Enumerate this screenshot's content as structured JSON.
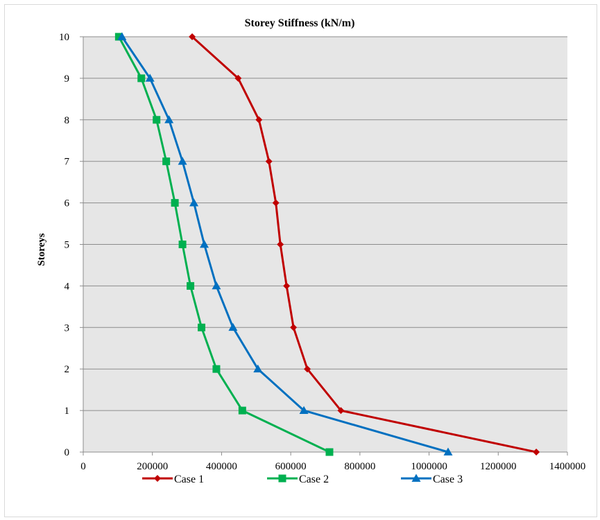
{
  "chart_data": {
    "type": "line",
    "title": "Storey Stiffness (kN/m)",
    "xlabel": "",
    "ylabel": "Storeys",
    "xlim": [
      0,
      1400000
    ],
    "ylim": [
      0,
      10
    ],
    "x_ticks": [
      "0",
      "200000",
      "400000",
      "600000",
      "800000",
      "1000000",
      "1200000",
      "1400000"
    ],
    "y_ticks": [
      "0",
      "1",
      "2",
      "3",
      "4",
      "5",
      "6",
      "7",
      "8",
      "9",
      "10"
    ],
    "grid": "horizontal",
    "legend_position": "bottom",
    "plot_background": "#e6e6e6",
    "series": [
      {
        "name": "Case 1",
        "color": "#c00000",
        "marker": "diamond",
        "points": [
          {
            "x": 1310000,
            "y": 0
          },
          {
            "x": 745000,
            "y": 1
          },
          {
            "x": 648000,
            "y": 2
          },
          {
            "x": 608000,
            "y": 3
          },
          {
            "x": 588000,
            "y": 4
          },
          {
            "x": 570000,
            "y": 5
          },
          {
            "x": 557000,
            "y": 6
          },
          {
            "x": 537000,
            "y": 7
          },
          {
            "x": 508000,
            "y": 8
          },
          {
            "x": 448000,
            "y": 9
          },
          {
            "x": 315000,
            "y": 10
          }
        ]
      },
      {
        "name": "Case 2",
        "color": "#00b050",
        "marker": "square",
        "points": [
          {
            "x": 712000,
            "y": 0
          },
          {
            "x": 460000,
            "y": 1
          },
          {
            "x": 385000,
            "y": 2
          },
          {
            "x": 342000,
            "y": 3
          },
          {
            "x": 310000,
            "y": 4
          },
          {
            "x": 287000,
            "y": 5
          },
          {
            "x": 265000,
            "y": 6
          },
          {
            "x": 240000,
            "y": 7
          },
          {
            "x": 212000,
            "y": 8
          },
          {
            "x": 168000,
            "y": 9
          },
          {
            "x": 103000,
            "y": 10
          }
        ]
      },
      {
        "name": "Case 3",
        "color": "#0070c0",
        "marker": "triangle",
        "points": [
          {
            "x": 1055000,
            "y": 0
          },
          {
            "x": 638000,
            "y": 1
          },
          {
            "x": 505000,
            "y": 2
          },
          {
            "x": 433000,
            "y": 3
          },
          {
            "x": 385000,
            "y": 4
          },
          {
            "x": 350000,
            "y": 5
          },
          {
            "x": 320000,
            "y": 6
          },
          {
            "x": 287000,
            "y": 7
          },
          {
            "x": 248000,
            "y": 8
          },
          {
            "x": 193000,
            "y": 9
          },
          {
            "x": 112000,
            "y": 10
          }
        ]
      }
    ]
  }
}
